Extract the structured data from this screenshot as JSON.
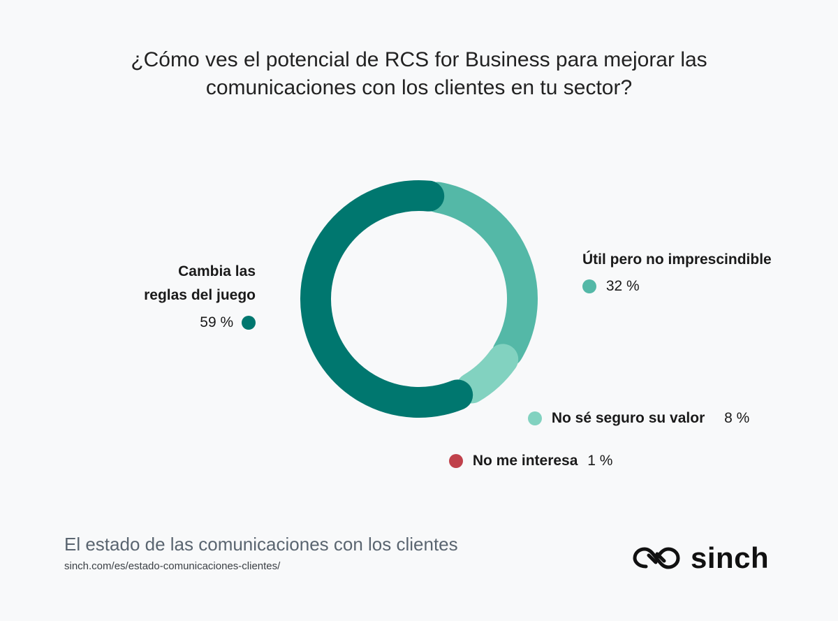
{
  "title": {
    "line1": "¿Cómo ves el potencial de RCS for Business para mejorar las",
    "line2": "comunicaciones con los clientes en tu sector?"
  },
  "chart_data": {
    "type": "pie",
    "series": [
      {
        "name": "Cambia las reglas del juego",
        "value": 59,
        "display": "59 %",
        "color": "#00776f"
      },
      {
        "name": "Útil pero no imprescindible",
        "value": 32,
        "display": "32 %",
        "color": "#54b8a7"
      },
      {
        "name": "No sé seguro su valor",
        "value": 8,
        "display": "8 %",
        "color": "#82d2c0"
      },
      {
        "name": "No me interesa",
        "value": 1,
        "display": "1 %",
        "color": "#c0414b"
      }
    ]
  },
  "labels": {
    "game_changer_line1": "Cambia las",
    "game_changer_line2": "reglas del juego"
  },
  "footer": {
    "title": "El estado de las comunicaciones con los clientes",
    "url": "sinch.com/es/estado-comunicaciones-clientes/"
  },
  "logo": {
    "text": "sinch",
    "icon": "sinch-logo-icon"
  }
}
